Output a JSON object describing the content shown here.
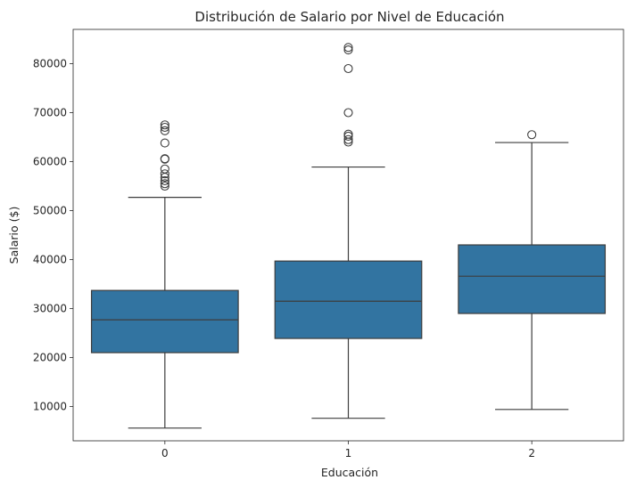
{
  "chart_data": {
    "type": "box",
    "title": "Distribución de Salario por Nivel de Educación",
    "xlabel": "Educación",
    "ylabel": "Salario ($)",
    "categories": [
      "0",
      "1",
      "2"
    ],
    "yticks": [
      10000,
      20000,
      30000,
      40000,
      50000,
      60000,
      70000,
      80000
    ],
    "ylim": [
      3000,
      87000
    ],
    "grid": false,
    "legend": "none",
    "box_color": "#3274a1",
    "line_color": "#3d3d3d",
    "boxes": [
      {
        "category": "0",
        "whisker_low": 5600,
        "q1": 21000,
        "median": 27700,
        "q3": 33700,
        "whisker_high": 52700,
        "outliers": [
          55000,
          55500,
          56100,
          56800,
          57500,
          58500,
          60500,
          60600,
          63800,
          66300,
          67000,
          67500
        ]
      },
      {
        "category": "1",
        "whisker_low": 7600,
        "q1": 23900,
        "median": 31500,
        "q3": 39700,
        "whisker_high": 58900,
        "outliers": [
          64000,
          64500,
          65200,
          65600,
          70000,
          79000,
          82800,
          83300
        ]
      },
      {
        "category": "2",
        "whisker_low": 9400,
        "q1": 29000,
        "median": 36600,
        "q3": 43000,
        "whisker_high": 63900,
        "outliers": [
          65500
        ]
      }
    ]
  }
}
